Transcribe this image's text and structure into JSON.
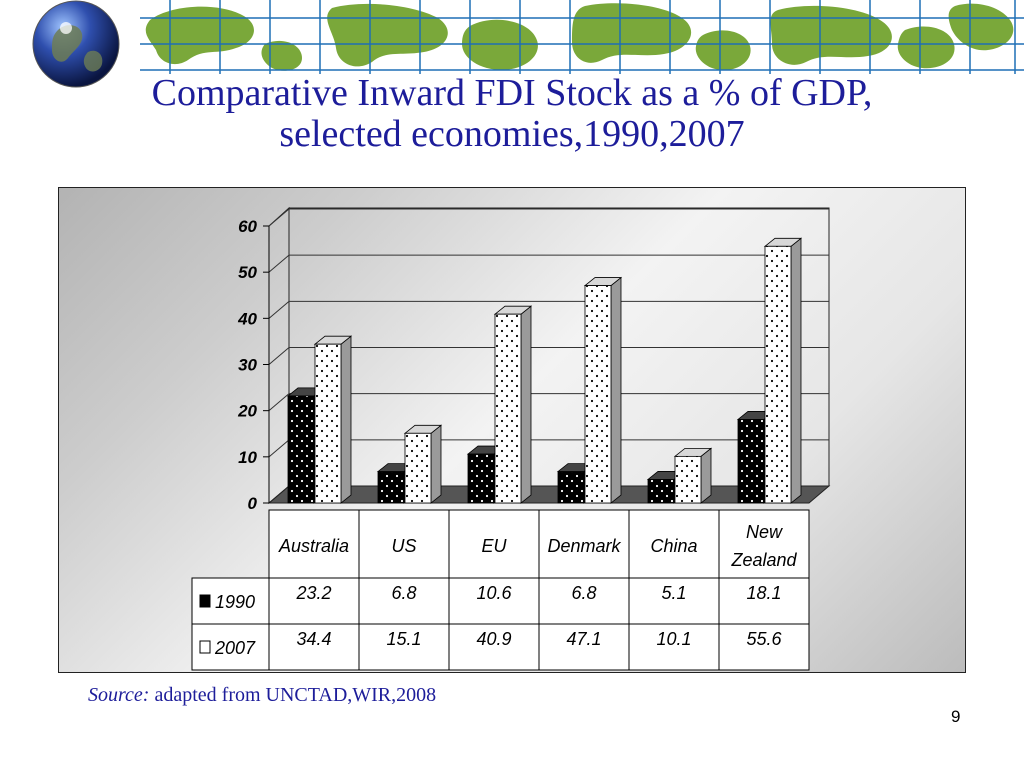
{
  "title": {
    "line1": "Comparative Inward FDI Stock as a % of GDP,",
    "line2": "selected economies,1990,2007"
  },
  "source": {
    "prefix": "Source:",
    "text": " adapted from UNCTAD,WIR,2008"
  },
  "page_number": "9",
  "colors": {
    "title": "#1d1d9a",
    "banner_bg": "#ffffff",
    "banner_land": "#7aa83a",
    "banner_grid": "#1e6fb5",
    "series_1990": "#000000",
    "series_2007": "#ffffff"
  },
  "chart_data": {
    "type": "bar",
    "style": "3d-clustered-column-with-data-table",
    "categories": [
      "Australia",
      "US",
      "EU",
      "Denmark",
      "China",
      "New Zealand"
    ],
    "series": [
      {
        "name": "1990",
        "values": [
          23.2,
          6.8,
          10.6,
          6.8,
          5.1,
          18.1
        ],
        "labels": [
          "23.2",
          "6.8",
          "10.6",
          "6.8",
          "5.1",
          "18.1"
        ],
        "fill": "black-dotted"
      },
      {
        "name": "2007",
        "values": [
          34.4,
          15.1,
          40.9,
          47.1,
          10.1,
          55.6
        ],
        "labels": [
          "34.4",
          "15.1",
          "40.9",
          "47.1",
          "10.1",
          "55.6"
        ],
        "fill": "white-dotted"
      }
    ],
    "yticks": [
      "0",
      "10",
      "20",
      "30",
      "40",
      "50",
      "60"
    ],
    "ylim": [
      0,
      60
    ],
    "grid": true,
    "legend": "in data table"
  }
}
